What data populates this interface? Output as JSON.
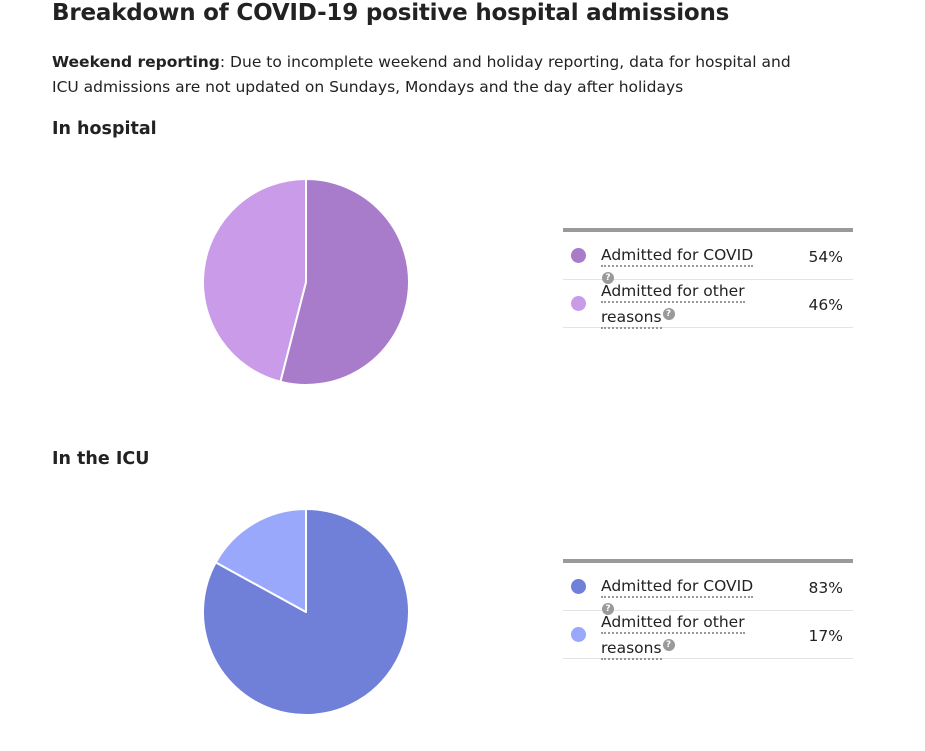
{
  "page": {
    "title": "Breakdown of COVID-19 positive hospital admissions",
    "note_label": "Weekend reporting",
    "note_text": ": Due to incomplete weekend and holiday reporting, data for hospital and ICU admissions are not updated on Sundays, Mondays and the day after holidays"
  },
  "chart_data": [
    {
      "type": "pie",
      "title": "In hospital",
      "categories": [
        "Admitted for COVID",
        "Admitted for other reasons"
      ],
      "values": [
        54,
        46
      ],
      "value_labels": [
        "54%",
        "46%"
      ],
      "colors": [
        "#a97bcb",
        "#c99be9"
      ],
      "legend": "right"
    },
    {
      "type": "pie",
      "title": "In the ICU",
      "categories": [
        "Admitted for COVID",
        "Admitted for other reasons"
      ],
      "values": [
        83,
        17
      ],
      "value_labels": [
        "83%",
        "17%"
      ],
      "colors": [
        "#7080d8",
        "#9aa8fb"
      ],
      "legend": "right"
    }
  ],
  "icons": {
    "help": "question-circle-icon",
    "help_glyph": "?"
  }
}
